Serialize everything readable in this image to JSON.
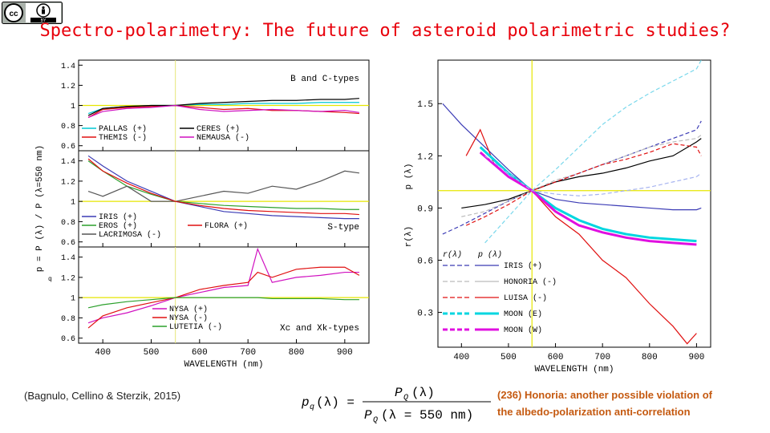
{
  "badge": {
    "cc": "cc",
    "by": "BY"
  },
  "slide": {
    "title": "Spectro-polarimetry: The future of asteroid  polarimetric studies?",
    "citation": "(Bagnulo, Cellino & Sterzik, 2015)",
    "note_line1": "(236) Honoria: another possible violation of",
    "note_line2": "the albedo-polarization anti-correlation",
    "formula": {
      "lhs": "p",
      "lhs_sub": "q",
      "lhs_arg": "(λ) =",
      "num": "P",
      "num_sub": "Q",
      "num_arg": "(λ)",
      "den": "P",
      "den_sub": "Q",
      "den_arg": "(λ = 550 nm)"
    }
  },
  "chart_data": [
    {
      "type": "line",
      "xlabel": "WAVELENGTH (nm)",
      "ylabel": "p  = P  (λ) / P  (λ=550 nm)",
      "ylabel_sub": "q",
      "xlim": [
        350,
        950
      ],
      "xticks": [
        400,
        500,
        600,
        700,
        800,
        900
      ],
      "reference_x": 550,
      "panels": [
        {
          "label": "B and C-types",
          "ylim": [
            0.55,
            1.45
          ],
          "yticks": [
            "1.4",
            "1.2",
            "1",
            "0.8",
            "0.6"
          ],
          "ytick_values": [
            1.4,
            1.2,
            1.0,
            0.8,
            0.6
          ],
          "legend": [
            {
              "name": "PALLAS (+)",
              "color": "#00c8d4"
            },
            {
              "name": "THEMIS (-)",
              "color": "#e01010"
            },
            {
              "name": "CERES (+)",
              "color": "#000000"
            },
            {
              "name": "NEMAUSA (-)",
              "color": "#d010c0"
            }
          ],
          "x": [
            370,
            400,
            450,
            500,
            550,
            600,
            650,
            700,
            750,
            800,
            850,
            900,
            930
          ],
          "series": [
            {
              "name": "PALLAS (+)",
              "color": "#00c8d4",
              "values": [
                0.92,
                0.97,
                0.99,
                1.0,
                1.0,
                1.01,
                1.01,
                1.02,
                1.02,
                1.02,
                1.03,
                1.03,
                1.03
              ]
            },
            {
              "name": "THEMIS (-)",
              "color": "#e01010",
              "values": [
                0.88,
                0.96,
                0.98,
                0.99,
                1.0,
                0.98,
                0.96,
                0.97,
                0.95,
                0.95,
                0.94,
                0.93,
                0.92
              ]
            },
            {
              "name": "CERES (+)",
              "color": "#000000",
              "values": [
                0.9,
                0.97,
                0.99,
                1.0,
                1.0,
                1.02,
                1.03,
                1.04,
                1.05,
                1.05,
                1.06,
                1.06,
                1.07
              ]
            },
            {
              "name": "NEMAUSA (-)",
              "color": "#d010c0",
              "values": [
                0.88,
                0.94,
                0.97,
                0.98,
                1.0,
                0.96,
                0.94,
                0.95,
                0.96,
                0.95,
                0.94,
                0.95,
                0.93
              ]
            }
          ]
        },
        {
          "label": "S-type",
          "ylim": [
            0.55,
            1.5
          ],
          "yticks": [
            "1.4",
            "1.2",
            "1",
            "0.8",
            "0.6"
          ],
          "ytick_values": [
            1.4,
            1.2,
            1.0,
            0.8,
            0.6
          ],
          "legend": [
            {
              "name": "IRIS (+)",
              "color": "#3b3bb5"
            },
            {
              "name": "EROS (+)",
              "color": "#2ca02c"
            },
            {
              "name": "LACRIMOSA (-)",
              "color": "#555555"
            },
            {
              "name": "FLORA (+)",
              "color": "#e01010"
            }
          ],
          "x": [
            370,
            400,
            450,
            500,
            550,
            600,
            650,
            700,
            750,
            800,
            850,
            900,
            930
          ],
          "series": [
            {
              "name": "IRIS (+)",
              "color": "#3b3bb5",
              "values": [
                1.45,
                1.35,
                1.2,
                1.1,
                1.0,
                0.95,
                0.9,
                0.88,
                0.86,
                0.85,
                0.84,
                0.83,
                0.83
              ]
            },
            {
              "name": "EROS (+)",
              "color": "#2ca02c",
              "values": [
                1.4,
                1.3,
                1.15,
                1.07,
                1.0,
                0.98,
                0.96,
                0.95,
                0.94,
                0.93,
                0.93,
                0.92,
                0.92
              ]
            },
            {
              "name": "LACRIMOSA (-)",
              "color": "#555555",
              "values": [
                1.1,
                1.05,
                1.15,
                1.0,
                1.0,
                1.05,
                1.1,
                1.08,
                1.15,
                1.12,
                1.2,
                1.3,
                1.28
              ]
            },
            {
              "name": "FLORA (+)",
              "color": "#e01010",
              "values": [
                1.42,
                1.3,
                1.18,
                1.08,
                1.0,
                0.96,
                0.93,
                0.91,
                0.9,
                0.89,
                0.88,
                0.88,
                0.87
              ]
            }
          ]
        },
        {
          "label": "Xc and Xk-types",
          "ylim": [
            0.55,
            1.5
          ],
          "yticks": [
            "1.4",
            "1.2",
            "1",
            "0.8",
            "0.6"
          ],
          "ytick_values": [
            1.4,
            1.2,
            1.0,
            0.8,
            0.6
          ],
          "legend": [
            {
              "name": "NYSA (+)",
              "color": "#d010c0"
            },
            {
              "name": "NYSA (-)",
              "color": "#e01010"
            },
            {
              "name": "LUTETIA (-)",
              "color": "#2ca02c"
            }
          ],
          "x": [
            370,
            400,
            450,
            500,
            550,
            600,
            650,
            700,
            720,
            750,
            800,
            850,
            900,
            930
          ],
          "series": [
            {
              "name": "NYSA (+)",
              "color": "#d010c0",
              "values": [
                0.75,
                0.8,
                0.85,
                0.92,
                1.0,
                1.05,
                1.1,
                1.12,
                1.48,
                1.15,
                1.2,
                1.22,
                1.25,
                1.25
              ]
            },
            {
              "name": "NYSA (-)",
              "color": "#e01010",
              "values": [
                0.7,
                0.82,
                0.9,
                0.95,
                1.0,
                1.08,
                1.12,
                1.15,
                1.25,
                1.2,
                1.28,
                1.3,
                1.3,
                1.22
              ]
            },
            {
              "name": "LUTETIA (-)",
              "color": "#2ca02c",
              "values": [
                0.9,
                0.93,
                0.96,
                0.98,
                1.0,
                1.0,
                1.0,
                1.0,
                1.0,
                0.99,
                0.99,
                0.99,
                0.98,
                0.98
              ]
            }
          ]
        }
      ]
    },
    {
      "type": "line",
      "xlabel": "WAVELENGTH (nm)",
      "ylabel_left": "r(λ)",
      "ylabel_right": "p (λ)",
      "ylabel_right_sub": "q",
      "xlim": [
        350,
        930
      ],
      "ylim": [
        0.1,
        1.75
      ],
      "xticks": [
        400,
        500,
        600,
        700,
        800,
        900
      ],
      "left_ticks": [
        "1.5",
        "1.2",
        "0.9",
        "0.6",
        "0.3"
      ],
      "left_tick_values": [
        1.5,
        1.2,
        0.9,
        0.6,
        0.3
      ],
      "reference_x": 550,
      "reference_y": 1.0,
      "legend_header": [
        "r(λ)",
        "p (λ)"
      ],
      "legend_header_sub": "q",
      "legend": [
        {
          "name": "IRIS (+)",
          "color": "#3b3bb5"
        },
        {
          "name": "HONORIA (-)",
          "color": "#bbbbbb"
        },
        {
          "name": "LUISA (-)",
          "color": "#e01010"
        },
        {
          "name": "MOON (E)",
          "color": "#00d6e0"
        },
        {
          "name": "MOON (W)",
          "color": "#e010e0"
        }
      ],
      "series": [
        {
          "name": "IRIS (+) p",
          "color": "#3b3bb5",
          "style": "solid",
          "x": [
            360,
            400,
            450,
            500,
            550,
            600,
            650,
            700,
            750,
            800,
            850,
            900,
            910
          ],
          "values": [
            1.5,
            1.38,
            1.25,
            1.12,
            1.0,
            0.95,
            0.93,
            0.92,
            0.91,
            0.9,
            0.89,
            0.89,
            0.9
          ]
        },
        {
          "name": "IRIS (+) r",
          "color": "#3b3bb5",
          "style": "dashed",
          "x": [
            360,
            400,
            450,
            500,
            550,
            600,
            650,
            700,
            750,
            800,
            850,
            900,
            910
          ],
          "values": [
            0.75,
            0.8,
            0.87,
            0.94,
            1.0,
            1.05,
            1.1,
            1.15,
            1.2,
            1.25,
            1.3,
            1.35,
            1.4
          ]
        },
        {
          "name": "HONORIA (-) p",
          "color": "#000000",
          "style": "solid",
          "x": [
            400,
            450,
            500,
            550,
            600,
            650,
            700,
            750,
            800,
            850,
            900,
            910
          ],
          "values": [
            0.9,
            0.92,
            0.95,
            1.0,
            1.05,
            1.08,
            1.1,
            1.13,
            1.17,
            1.2,
            1.28,
            1.3
          ]
        },
        {
          "name": "HONORIA (-) r",
          "color": "#bbbbbb",
          "style": "dashed",
          "x": [
            400,
            450,
            500,
            550,
            600,
            650,
            700,
            750,
            800,
            850,
            900,
            910
          ],
          "values": [
            0.85,
            0.88,
            0.94,
            1.0,
            1.06,
            1.1,
            1.15,
            1.2,
            1.25,
            1.28,
            1.3,
            1.32
          ]
        },
        {
          "name": "LUISA (-) p",
          "color": "#e01010",
          "style": "solid",
          "x": [
            410,
            440,
            470,
            500,
            550,
            600,
            650,
            700,
            750,
            800,
            850,
            880,
            900
          ],
          "values": [
            1.2,
            1.35,
            1.15,
            1.08,
            1.0,
            0.85,
            0.75,
            0.6,
            0.5,
            0.35,
            0.22,
            0.12,
            0.18
          ]
        },
        {
          "name": "LUISA (-) r",
          "color": "#e01010",
          "style": "dashed",
          "x": [
            410,
            450,
            500,
            550,
            600,
            650,
            700,
            750,
            800,
            850,
            900,
            910
          ],
          "values": [
            0.8,
            0.85,
            0.92,
            1.0,
            1.05,
            1.1,
            1.15,
            1.18,
            1.22,
            1.27,
            1.25,
            1.2
          ]
        },
        {
          "name": "MOON (E) p",
          "color": "#00d6e0",
          "style": "thick",
          "x": [
            440,
            500,
            550,
            600,
            650,
            700,
            750,
            800,
            850,
            900
          ],
          "values": [
            1.25,
            1.1,
            1.0,
            0.9,
            0.83,
            0.78,
            0.75,
            0.73,
            0.72,
            0.71
          ]
        },
        {
          "name": "MOON (E) r",
          "color": "#7ad8ec",
          "style": "dashed",
          "x": [
            450,
            500,
            550,
            600,
            650,
            700,
            750,
            800,
            850,
            900,
            910
          ],
          "values": [
            0.7,
            0.85,
            1.0,
            1.12,
            1.25,
            1.38,
            1.48,
            1.56,
            1.63,
            1.7,
            1.75
          ]
        },
        {
          "name": "MOON (W) p",
          "color": "#e010e0",
          "style": "thick",
          "x": [
            440,
            500,
            550,
            600,
            650,
            700,
            750,
            800,
            850,
            900
          ],
          "values": [
            1.22,
            1.08,
            1.0,
            0.88,
            0.8,
            0.76,
            0.73,
            0.71,
            0.7,
            0.69
          ]
        },
        {
          "name": "MOON (W) r",
          "color": "#a7b4f0",
          "style": "dashed",
          "x": [
            450,
            500,
            550,
            600,
            650,
            700,
            750,
            800,
            850,
            900,
            910
          ],
          "values": [
            1.2,
            1.1,
            1.0,
            0.98,
            0.97,
            0.98,
            1.0,
            1.02,
            1.05,
            1.08,
            1.1
          ]
        }
      ]
    }
  ]
}
